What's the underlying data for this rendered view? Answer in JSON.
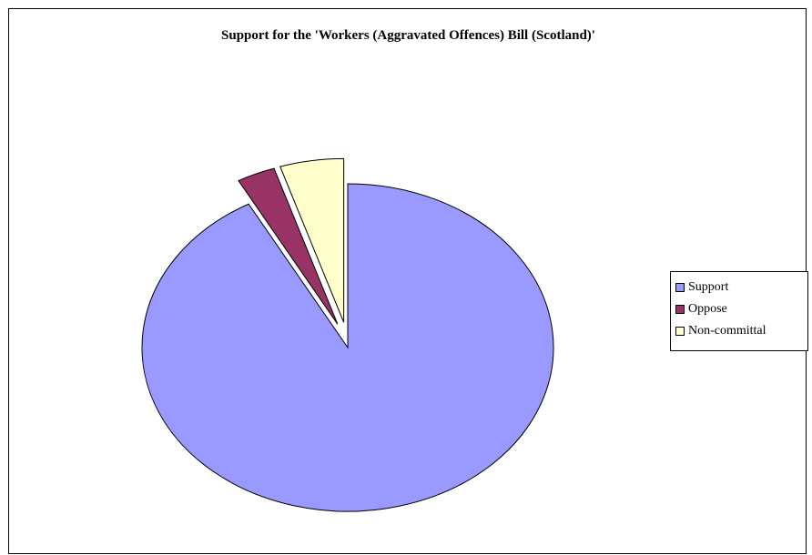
{
  "chart_data": {
    "type": "pie",
    "title": "Support for the 'Workers (Aggravated Offences) Bill (Scotland)'",
    "slices": [
      {
        "name": "Support",
        "value": 92,
        "color": "#9999ff",
        "exploded": false
      },
      {
        "name": "Oppose",
        "value": 3,
        "color": "#993366",
        "exploded": true
      },
      {
        "name": "Non-committal",
        "value": 5,
        "color": "#ffffcc",
        "exploded": true
      }
    ],
    "start_angle_deg": 0,
    "direction": "clockwise",
    "legend_position": "right"
  }
}
